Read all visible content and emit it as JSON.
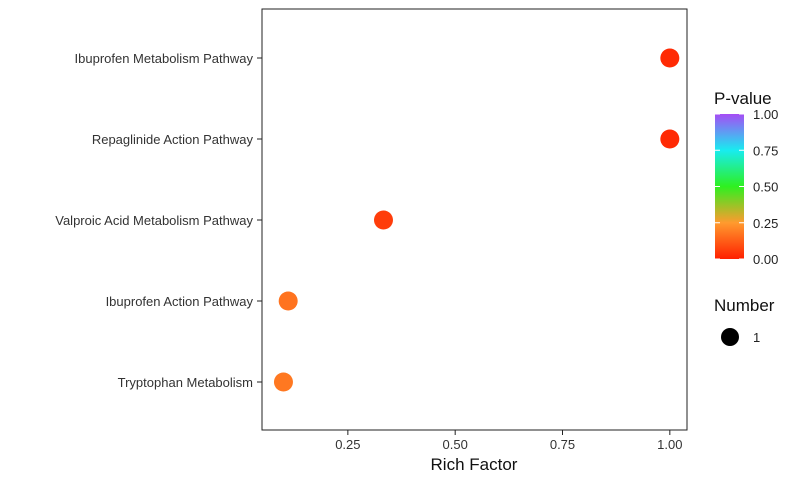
{
  "chart_data": {
    "type": "scatter",
    "title": "",
    "xlabel": "Rich Factor",
    "ylabel": "",
    "xlim": [
      0.05,
      1.04
    ],
    "x_ticks": [
      0.25,
      0.5,
      0.75,
      1.0
    ],
    "x_tick_labels": [
      "0.25",
      "0.50",
      "0.75",
      "1.00"
    ],
    "categories": [
      "Ibuprofen Metabolism Pathway",
      "Repaglinide Action Pathway",
      "Valproic Acid Metabolism Pathway",
      "Ibuprofen Action Pathway",
      "Tryptophan Metabolism"
    ],
    "points": [
      {
        "pathway": "Ibuprofen Metabolism Pathway",
        "rich_factor": 1.0,
        "p_value": 0.02,
        "number": 1
      },
      {
        "pathway": "Repaglinide Action Pathway",
        "rich_factor": 1.0,
        "p_value": 0.02,
        "number": 1
      },
      {
        "pathway": "Valproic Acid Metabolism Pathway",
        "rich_factor": 0.333,
        "p_value": 0.06,
        "number": 1
      },
      {
        "pathway": "Ibuprofen Action Pathway",
        "rich_factor": 0.111,
        "p_value": 0.17,
        "number": 1
      },
      {
        "pathway": "Tryptophan Metabolism",
        "rich_factor": 0.1,
        "p_value": 0.18,
        "number": 1
      }
    ],
    "color_legend": {
      "title": "P-value",
      "ticks": [
        1.0,
        0.75,
        0.5,
        0.25,
        0.0
      ],
      "tick_labels": [
        "1.00",
        "0.75",
        "0.50",
        "0.25",
        "0.00"
      ],
      "colormap": [
        "#ff2000",
        "#ff9a2e",
        "#2ef020",
        "#18ecf0",
        "#a64cf5"
      ]
    },
    "size_legend": {
      "title": "Number",
      "values": [
        1
      ],
      "labels": [
        "1"
      ]
    },
    "grid": false,
    "legend_position": "right"
  }
}
